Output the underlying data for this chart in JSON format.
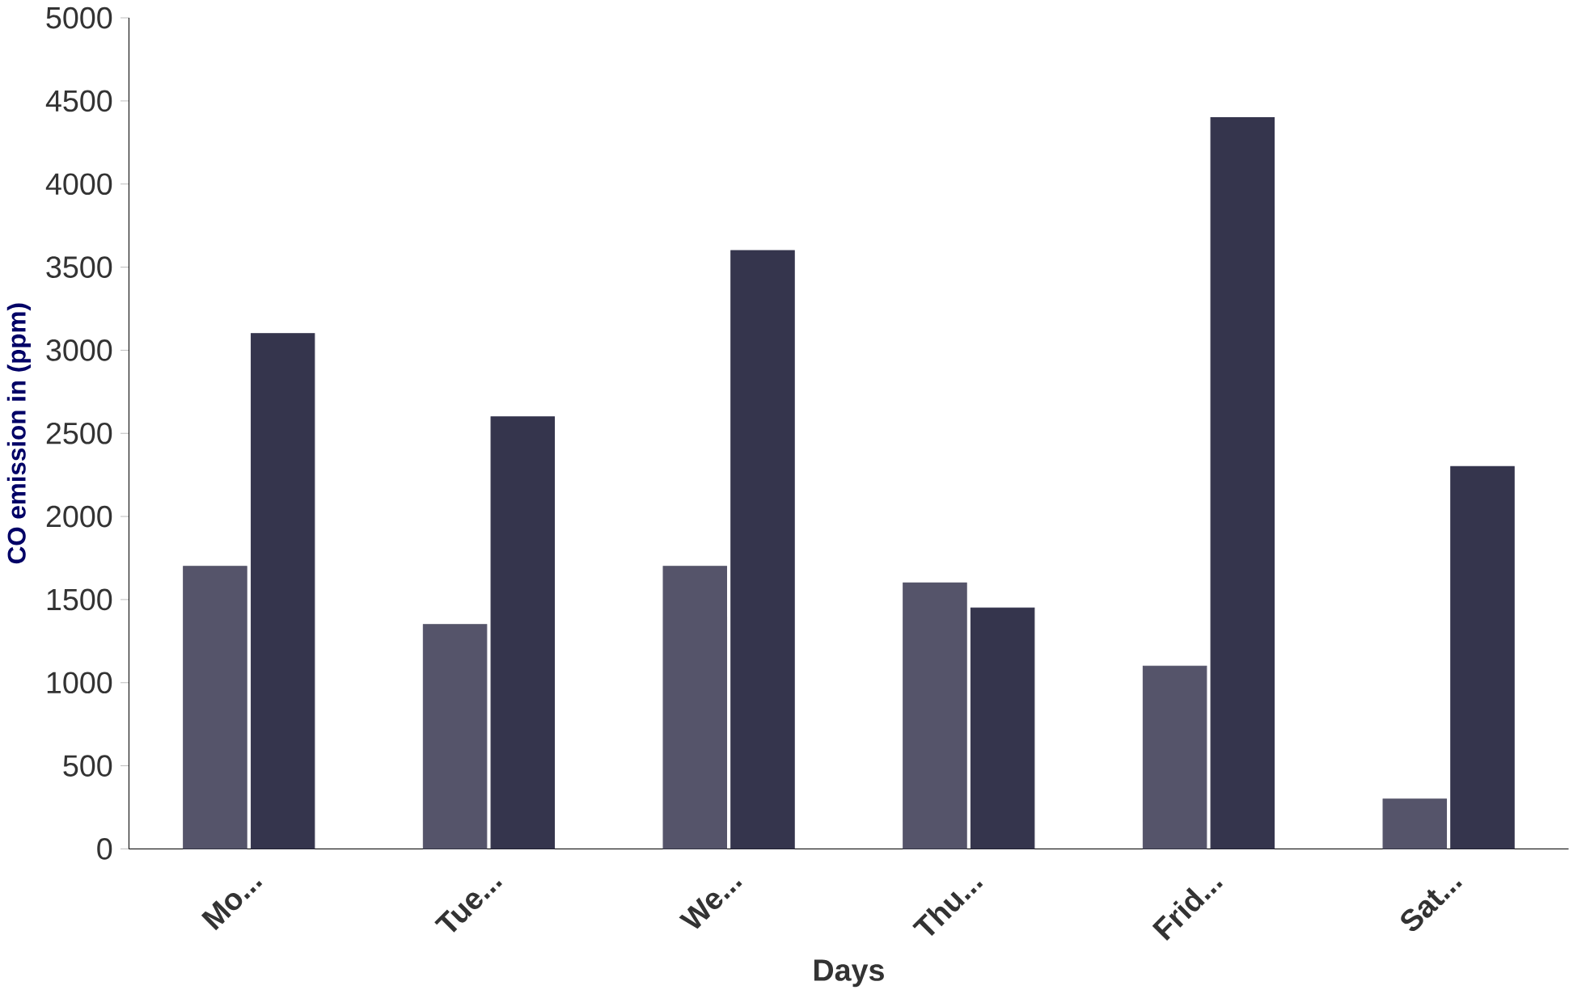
{
  "chart_data": {
    "type": "bar",
    "xlabel": "Days",
    "ylabel": "CO emission in (ppm)",
    "categories": [
      "Mo...",
      "Tue...",
      "We...",
      "Thu...",
      "Frid...",
      "Sat..."
    ],
    "series": [
      {
        "color": "#55546a",
        "values": [
          1700,
          1350,
          1700,
          1600,
          1100,
          300
        ]
      },
      {
        "color": "#35354d",
        "values": [
          3100,
          2600,
          3600,
          1450,
          4400,
          2300
        ]
      }
    ],
    "ylim": [
      0,
      5000
    ],
    "yticks": [
      0,
      500,
      1000,
      1500,
      2000,
      2500,
      3000,
      3500,
      4000,
      4500,
      5000
    ],
    "grid": false
  }
}
